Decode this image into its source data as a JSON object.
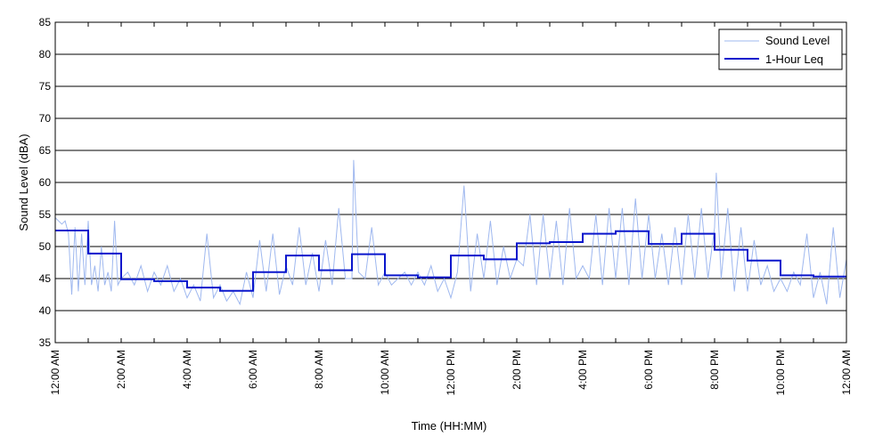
{
  "chart_data": {
    "type": "line",
    "title": "",
    "xlabel": "Time (HH:MM)",
    "ylabel": "Sound Level (dBA)",
    "ylim": [
      35,
      85
    ],
    "xlim": [
      0,
      24
    ],
    "yticks": [
      35,
      40,
      45,
      50,
      55,
      60,
      65,
      70,
      75,
      80,
      85
    ],
    "xtick_labels": [
      {
        "h": 0,
        "label": "12:00 AM"
      },
      {
        "h": 2,
        "label": "2:00 AM"
      },
      {
        "h": 4,
        "label": "4:00 AM"
      },
      {
        "h": 6,
        "label": "6:00 AM"
      },
      {
        "h": 8,
        "label": "8:00 AM"
      },
      {
        "h": 10,
        "label": "10:00 AM"
      },
      {
        "h": 12,
        "label": "12:00 PM"
      },
      {
        "h": 14,
        "label": "2:00 PM"
      },
      {
        "h": 16,
        "label": "4:00 PM"
      },
      {
        "h": 18,
        "label": "6:00 PM"
      },
      {
        "h": 20,
        "label": "8:00 PM"
      },
      {
        "h": 22,
        "label": "10:00 PM"
      },
      {
        "h": 24,
        "label": "12:00 AM"
      }
    ],
    "grid": "horizontal",
    "legend_position": "top-right",
    "series": [
      {
        "name": "Sound Level",
        "color": "#9fb8ef",
        "x": [
          0,
          0.1,
          0.2,
          0.3,
          0.4,
          0.5,
          0.6,
          0.7,
          0.8,
          0.9,
          1.0,
          1.1,
          1.2,
          1.3,
          1.4,
          1.5,
          1.6,
          1.7,
          1.8,
          1.9,
          2.0,
          2.2,
          2.4,
          2.6,
          2.8,
          3.0,
          3.2,
          3.4,
          3.6,
          3.8,
          4.0,
          4.2,
          4.4,
          4.6,
          4.8,
          5.0,
          5.2,
          5.4,
          5.6,
          5.8,
          6.0,
          6.2,
          6.4,
          6.6,
          6.8,
          7.0,
          7.2,
          7.4,
          7.6,
          7.8,
          8.0,
          8.2,
          8.4,
          8.6,
          8.8,
          9.0,
          9.05,
          9.2,
          9.4,
          9.6,
          9.8,
          10.0,
          10.2,
          10.4,
          10.6,
          10.8,
          11.0,
          11.2,
          11.4,
          11.6,
          11.8,
          12.0,
          12.2,
          12.4,
          12.6,
          12.8,
          13.0,
          13.2,
          13.4,
          13.6,
          13.8,
          14.0,
          14.2,
          14.4,
          14.6,
          14.8,
          15.0,
          15.2,
          15.4,
          15.6,
          15.8,
          16.0,
          16.2,
          16.4,
          16.6,
          16.8,
          17.0,
          17.2,
          17.4,
          17.6,
          17.8,
          18.0,
          18.2,
          18.4,
          18.6,
          18.8,
          19.0,
          19.2,
          19.4,
          19.6,
          19.8,
          20.0,
          20.05,
          20.2,
          20.4,
          20.6,
          20.8,
          21.0,
          21.2,
          21.4,
          21.6,
          21.8,
          22.0,
          22.2,
          22.4,
          22.6,
          22.8,
          23.0,
          23.2,
          23.4,
          23.6,
          23.8,
          24.0
        ],
        "y": [
          54.5,
          54,
          53.5,
          54,
          52,
          42.5,
          53,
          43,
          52,
          44,
          54,
          44,
          47,
          43,
          50,
          44,
          46,
          43,
          54,
          44,
          45,
          46,
          44,
          47,
          43,
          46,
          44,
          47,
          43,
          45,
          42,
          44,
          41.5,
          52,
          42,
          44,
          41.5,
          43,
          41,
          46,
          42,
          51,
          43,
          52,
          42.5,
          47,
          44,
          53,
          44,
          49,
          43,
          51,
          44,
          56,
          45,
          45,
          63.5,
          46,
          45,
          53,
          44,
          46,
          44,
          45,
          46,
          44,
          46,
          44,
          47,
          43,
          45,
          42,
          46,
          59.5,
          43,
          52,
          45,
          54,
          44,
          50,
          45,
          48,
          47,
          55,
          44,
          55,
          45,
          54,
          44,
          56,
          45,
          47,
          45,
          55,
          44,
          56,
          45,
          56,
          44,
          57.5,
          45,
          55,
          45,
          52,
          44,
          53,
          44,
          55,
          45,
          56,
          45,
          53,
          61.5,
          45,
          56,
          43,
          53,
          43,
          51,
          44,
          47,
          43,
          45,
          43,
          46,
          44,
          52,
          42,
          46,
          41,
          53,
          42,
          48
        ]
      },
      {
        "name": "1-Hour Leq",
        "color": "#0a16cc",
        "step_values": [
          52.5,
          48.9,
          44.9,
          44.6,
          43.6,
          43.1,
          46.0,
          48.6,
          46.3,
          48.8,
          45.5,
          45.2,
          48.6,
          48.0,
          50.5,
          50.7,
          52.0,
          52.4,
          50.4,
          52.0,
          49.5,
          47.8,
          45.5,
          45.3
        ]
      }
    ]
  }
}
